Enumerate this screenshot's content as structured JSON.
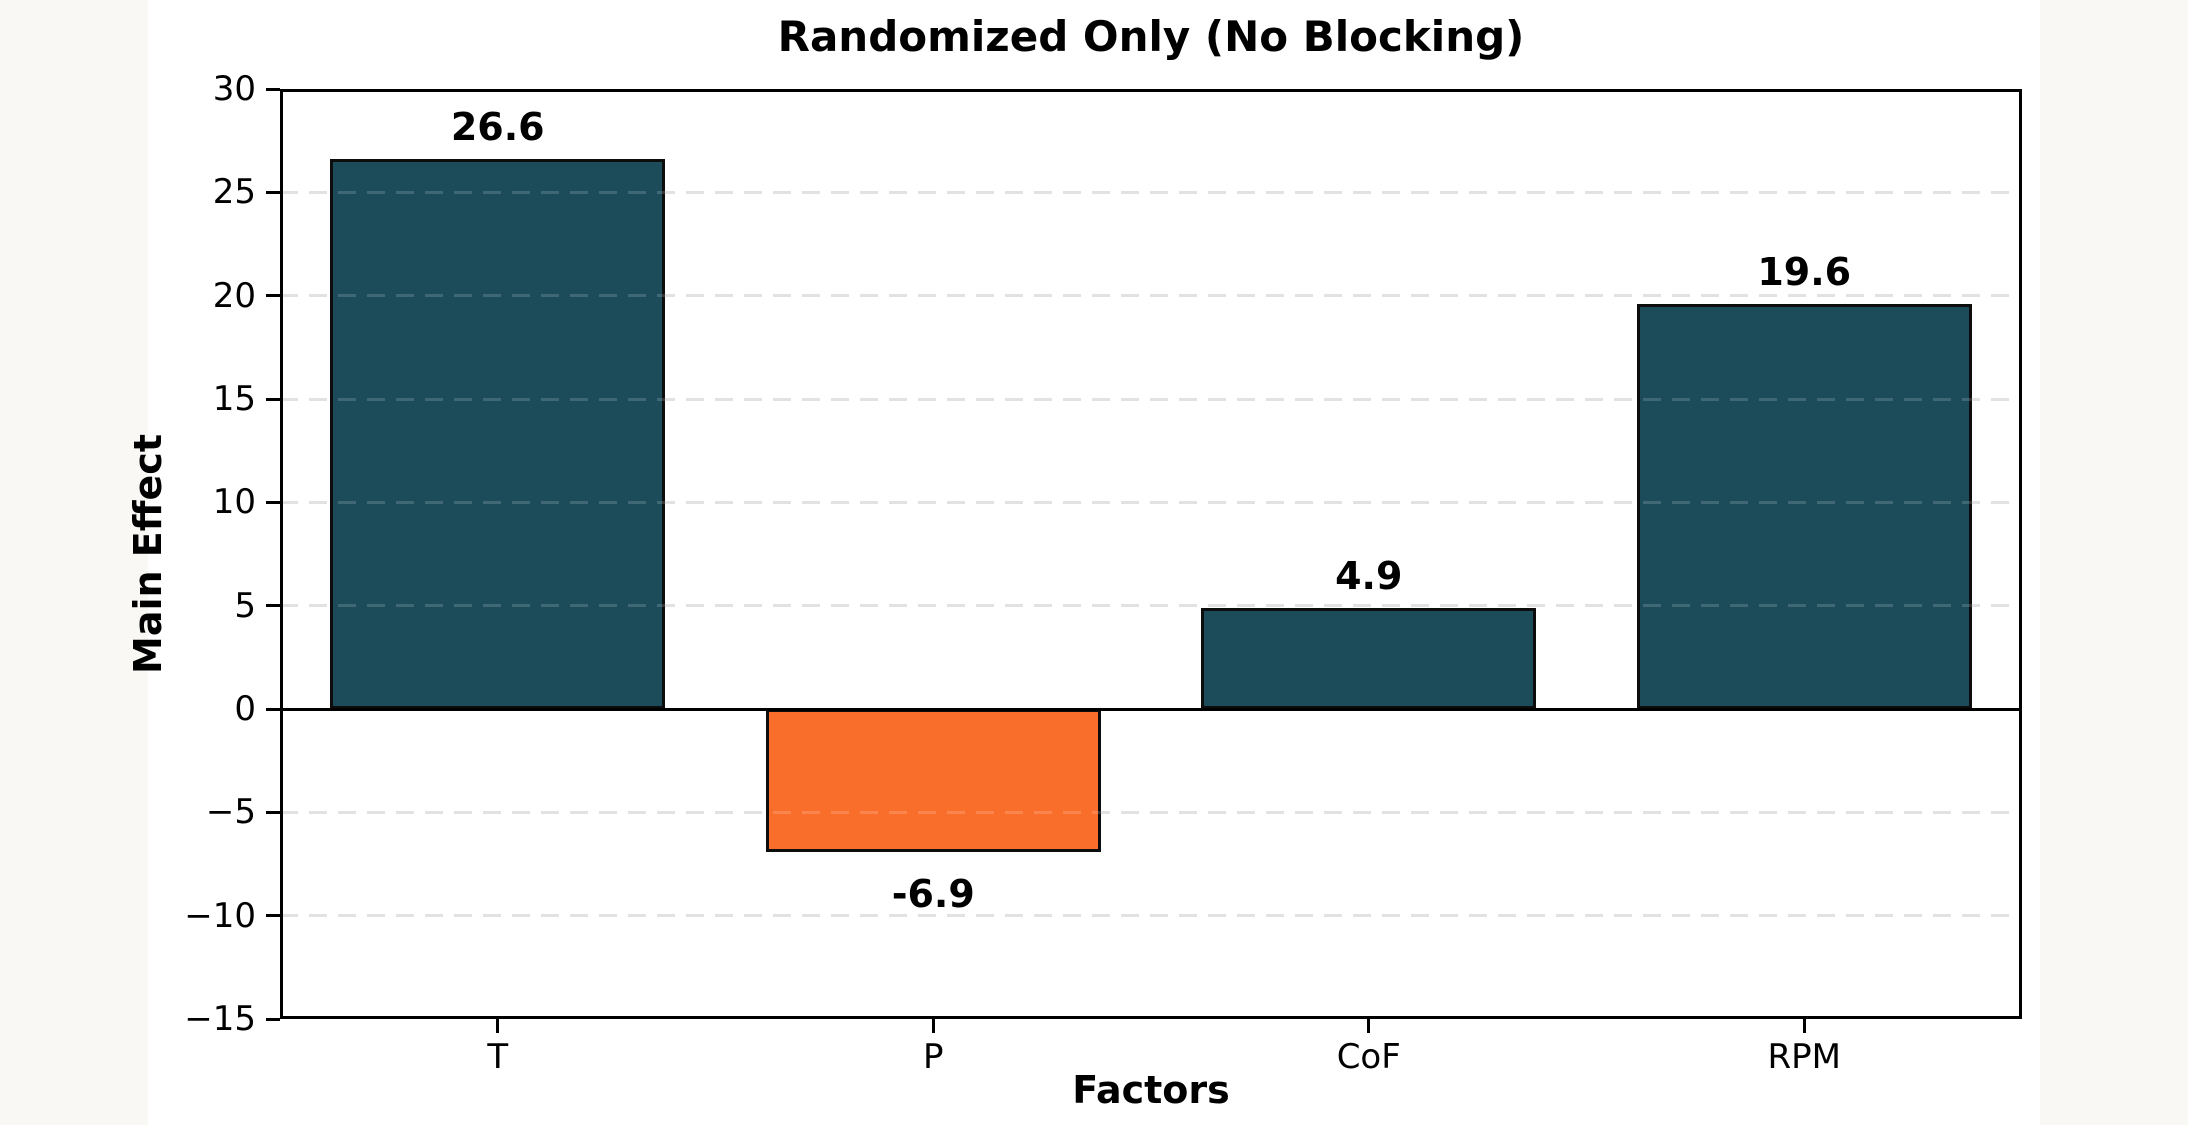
{
  "chart_data": {
    "type": "bar",
    "title": "Randomized Only (No Blocking)",
    "xlabel": "Factors",
    "ylabel": "Main Effect",
    "categories": [
      "T",
      "P",
      "CoF",
      "RPM"
    ],
    "values": [
      26.6,
      -6.9,
      4.9,
      19.6
    ],
    "bar_labels": [
      "26.6",
      "-6.9",
      "4.9",
      "19.6"
    ],
    "bar_colors": [
      "#1c4b5a",
      "#f96e2b",
      "#1c4b5a",
      "#1c4b5a"
    ],
    "ylim": [
      -15,
      30
    ],
    "yticks": [
      30,
      25,
      20,
      15,
      10,
      5,
      0,
      -5,
      -10,
      -15
    ],
    "ytick_labels": [
      "30",
      "25",
      "20",
      "15",
      "10",
      "5",
      "0",
      "−5",
      "−10",
      "−15"
    ],
    "grid": "horizontal dashed at y ticks",
    "legend": "none",
    "zero_line": true
  },
  "colors": {
    "page_bg": "#faf8f5",
    "figure_bg": "#ffffff",
    "grid": "#dcdcdc",
    "bar_edge": "#0d0d0d",
    "axis": "#000000",
    "text": "#000000"
  }
}
